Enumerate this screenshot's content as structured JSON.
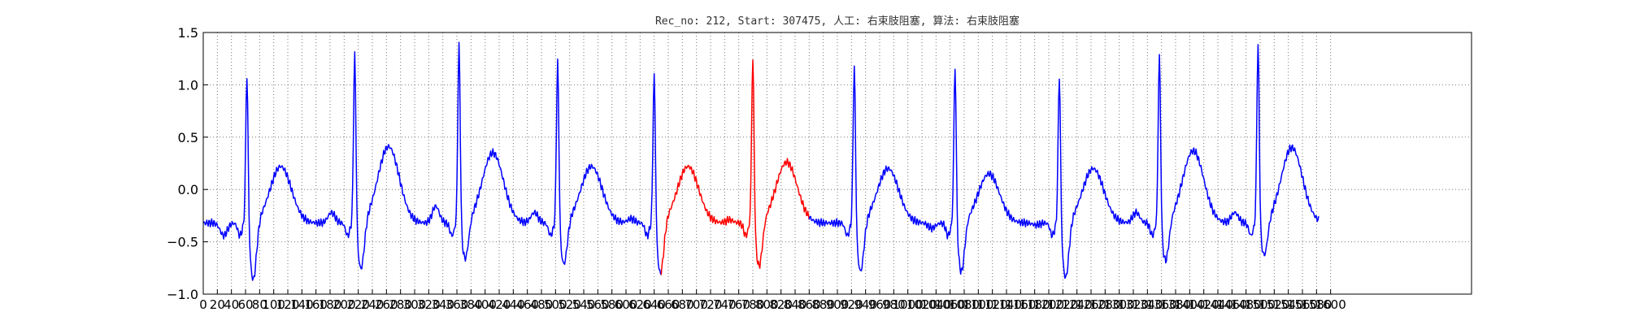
{
  "chart_data": {
    "type": "line",
    "title": "Rec_no: 212, Start: 307475, 人工: 右束肢阻塞, 算法: 右束肢阻塞",
    "xlabel": "",
    "ylabel": "",
    "xlim": [
      0,
      1800
    ],
    "ylim": [
      -1.0,
      1.5
    ],
    "yticks": [
      -1.0,
      -0.5,
      0.0,
      0.5,
      1.0,
      1.5
    ],
    "ytick_labels": [
      "−1.0",
      "−0.5",
      "0.0",
      "0.5",
      "1.0",
      "1.5"
    ],
    "xticks": [
      0,
      20,
      40,
      60,
      80,
      100,
      120,
      140,
      160,
      180,
      200,
      220,
      240,
      260,
      280,
      300,
      320,
      340,
      360,
      380,
      400,
      420,
      440,
      460,
      480,
      500,
      520,
      540,
      560,
      580,
      600,
      620,
      640,
      660,
      680,
      700,
      720,
      740,
      760,
      780,
      800,
      820,
      840,
      860,
      880,
      900,
      920,
      940,
      960,
      980,
      1000,
      1020,
      1040,
      1060,
      1080,
      1100,
      1120,
      1140,
      1160,
      1180,
      1200,
      1220,
      1240,
      1260,
      1280,
      1300,
      1320,
      1340,
      1360,
      1380,
      1400,
      1420,
      1440,
      1460,
      1480,
      1500,
      1520,
      1540,
      1560,
      1580,
      1600
    ],
    "grid": true,
    "colors": {
      "normal": "#0000ff",
      "highlight": "#ff0000",
      "grid": "#777777",
      "axes": "#000000"
    },
    "highlight_range": [
      650,
      860
    ],
    "beats": [
      {
        "r": 62,
        "amp": 1.03,
        "sDepth": -0.88,
        "tAmp": 0.22,
        "pAmp": -0.22
      },
      {
        "r": 215,
        "amp": 1.22,
        "sDepth": -0.78,
        "tAmp": 0.41,
        "pAmp": 0.0
      },
      {
        "r": 363,
        "amp": 1.3,
        "sDepth": -0.68,
        "tAmp": 0.35,
        "pAmp": 0.06
      },
      {
        "r": 503,
        "amp": 1.15,
        "sDepth": -0.73,
        "tAmp": 0.22,
        "pAmp": 0.0
      },
      {
        "r": 640,
        "amp": 1.03,
        "sDepth": -0.82,
        "tAmp": 0.22,
        "pAmp": -0.06
      },
      {
        "r": 780,
        "amp": 1.18,
        "sDepth": -0.75,
        "tAmp": 0.26,
        "pAmp": -0.07
      },
      {
        "r": 924,
        "amp": 1.11,
        "sDepth": -0.8,
        "tAmp": 0.2,
        "pAmp": -0.1
      },
      {
        "r": 1067,
        "amp": 1.1,
        "sDepth": -0.8,
        "tAmp": 0.15,
        "pAmp": -0.15
      },
      {
        "r": 1215,
        "amp": 1.03,
        "sDepth": -0.86,
        "tAmp": 0.2,
        "pAmp": -0.12
      },
      {
        "r": 1357,
        "amp": 1.21,
        "sDepth": -0.7,
        "tAmp": 0.37,
        "pAmp": 0.0
      },
      {
        "r": 1497,
        "amp": 1.3,
        "sDepth": -0.65,
        "tAmp": 0.4,
        "pAmp": 0.0
      }
    ],
    "x_end": 1583
  }
}
